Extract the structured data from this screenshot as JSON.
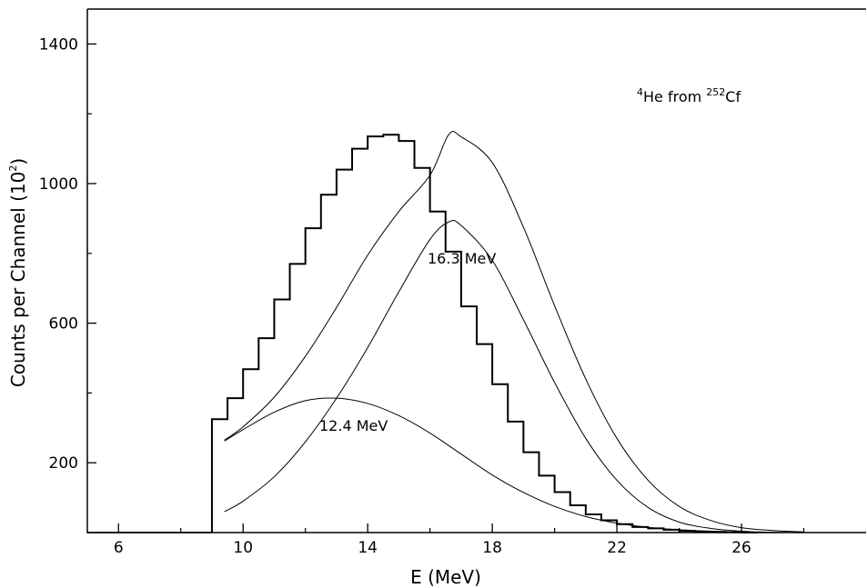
{
  "chart_data": {
    "type": "line",
    "title": "",
    "xlabel": "E (MeV)",
    "ylabel": "Counts per Channel (10",
    "ylabel_sup": "2",
    "ylabel_close": ")",
    "xlim": [
      5,
      30
    ],
    "ylim": [
      0,
      1500
    ],
    "x_ticks_major": [
      6,
      10,
      14,
      18,
      22,
      26
    ],
    "x_ticks_minor": [
      8,
      12,
      16,
      20,
      24,
      28
    ],
    "y_ticks_major": [
      200,
      600,
      1000,
      1400
    ],
    "y_ticks_minor": [
      400,
      800,
      1200
    ],
    "grid": false,
    "annotations": {
      "label_pre_sup": "4",
      "label_mid": "He from ",
      "label_sup2": "252",
      "label_post": "Cf",
      "peak_high": "16.3 MeV",
      "peak_low": "12.4 MeV"
    },
    "histogram": {
      "name": "",
      "bin_width": 0.5,
      "start": 9.0,
      "values": [
        325,
        385,
        468,
        557,
        668,
        770,
        872,
        968,
        1040,
        1100,
        1135,
        1140,
        1122,
        1045,
        920,
        805,
        648,
        540,
        425,
        318,
        230,
        163,
        116,
        78,
        52,
        35,
        24,
        16,
        12,
        8,
        5,
        3,
        2,
        1,
        0
      ]
    },
    "series": [
      {
        "name": "",
        "x": [
          9.4,
          10,
          11,
          12,
          13,
          14,
          15,
          16,
          16.6,
          17,
          18,
          19,
          20,
          21,
          22,
          23,
          24,
          25,
          26,
          27,
          28
        ],
        "y": [
          265,
          303,
          388,
          505,
          645,
          795,
          920,
          1024,
          1140,
          1134,
          1060,
          875,
          650,
          440,
          270,
          150,
          75,
          35,
          14,
          6,
          2
        ]
      },
      {
        "name": "",
        "x": [
          9.4,
          10,
          11,
          12,
          13,
          14,
          15,
          16,
          16.6,
          17,
          18,
          19,
          20,
          21,
          22,
          23,
          24,
          25,
          26,
          27,
          28
        ],
        "y": [
          60,
          90,
          160,
          260,
          385,
          530,
          690,
          840,
          890,
          880,
          780,
          610,
          430,
          270,
          150,
          72,
          30,
          12,
          4,
          1,
          0
        ]
      },
      {
        "name": "",
        "x": [
          9.4,
          10,
          11,
          12,
          13,
          14,
          15,
          16,
          17,
          18,
          19,
          20,
          21,
          22,
          23,
          24,
          25,
          26
        ],
        "y": [
          262,
          295,
          345,
          378,
          385,
          370,
          335,
          285,
          225,
          165,
          115,
          75,
          46,
          27,
          15,
          8,
          4,
          2
        ]
      }
    ]
  }
}
